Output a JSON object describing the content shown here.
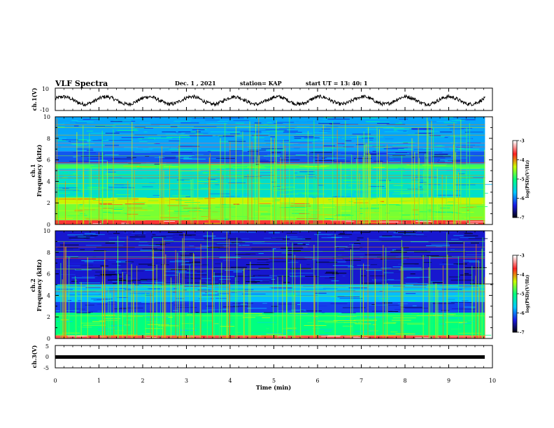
{
  "header": {
    "title": "VLF Spectra",
    "date": "Dec. 1 , 2021",
    "station": "station= KAP",
    "start": "start  UT =  13: 40: 1"
  },
  "colorbar": {
    "label": "log(PSD)(V²/Hz)",
    "ticks": [
      "-3",
      "-4",
      "-5",
      "-6",
      "-7"
    ],
    "colors": [
      "#000000",
      "#1a1ae6",
      "#00c8ff",
      "#00ff80",
      "#c8ff00",
      "#ff2020",
      "#ffffff"
    ]
  },
  "chart_data": [
    {
      "type": "line",
      "name": "ch1-waveform",
      "ylabel": "ch.1(V)",
      "ylim": [
        -10,
        10
      ],
      "yticks": [
        "10",
        "-10"
      ],
      "xlim": [
        0,
        10
      ],
      "note": "quasi-sinusoidal oscillation with ~10 cycles across the interval",
      "approx_amplitude_v": 6,
      "approx_period_min": 0.98,
      "color": "#000000"
    },
    {
      "type": "heatmap",
      "name": "ch1-spectrogram",
      "ylabel": "Frequency (kHz)",
      "channel_label": "ch.1",
      "ylim": [
        0,
        10
      ],
      "yticks": [
        "0",
        "2",
        "4",
        "6",
        "8",
        "10"
      ],
      "xlim": [
        0,
        9.83
      ],
      "color_range": [
        -7,
        -3
      ],
      "bands_khz": [
        {
          "f0": 0.0,
          "f1": 0.4,
          "level": -3.6
        },
        {
          "f0": 0.4,
          "f1": 1.9,
          "level": -4.6
        },
        {
          "f0": 1.9,
          "f1": 2.5,
          "level": -4.3
        },
        {
          "f0": 2.5,
          "f1": 5.2,
          "level": -5.4
        },
        {
          "f0": 5.2,
          "f1": 5.6,
          "level": -4.8
        },
        {
          "f0": 5.6,
          "f1": 6.8,
          "level": -6.1
        },
        {
          "f0": 6.8,
          "f1": 10.0,
          "level": -5.8
        }
      ]
    },
    {
      "type": "heatmap",
      "name": "ch2-spectrogram",
      "ylabel": "Frequency (kHz)",
      "channel_label": "ch.2",
      "ylim": [
        0,
        10
      ],
      "yticks": [
        "0",
        "2",
        "4",
        "6",
        "8",
        "10"
      ],
      "xlim": [
        0,
        9.83
      ],
      "color_range": [
        -7,
        -3
      ],
      "bands_khz": [
        {
          "f0": 0.0,
          "f1": 0.3,
          "level": -3.5
        },
        {
          "f0": 0.3,
          "f1": 2.4,
          "level": -5.0
        },
        {
          "f0": 2.4,
          "f1": 3.4,
          "level": -6.2
        },
        {
          "f0": 3.4,
          "f1": 5.0,
          "level": -5.7
        },
        {
          "f0": 5.0,
          "f1": 10.0,
          "level": -6.4
        }
      ]
    },
    {
      "type": "line",
      "name": "ch3-waveform",
      "ylabel": "ch.3(V)",
      "ylim": [
        -5,
        5
      ],
      "yticks": [
        "5",
        "0",
        "-5"
      ],
      "xlim": [
        0,
        10
      ],
      "note": "flat thick trace near -1 V",
      "approx_level_v": -1,
      "color": "#000000"
    }
  ],
  "xaxis": {
    "label": "Time  (min)",
    "range": [
      0,
      10
    ],
    "ticks": [
      "0",
      "1",
      "2",
      "3",
      "4",
      "5",
      "6",
      "7",
      "8",
      "9",
      "10"
    ]
  }
}
